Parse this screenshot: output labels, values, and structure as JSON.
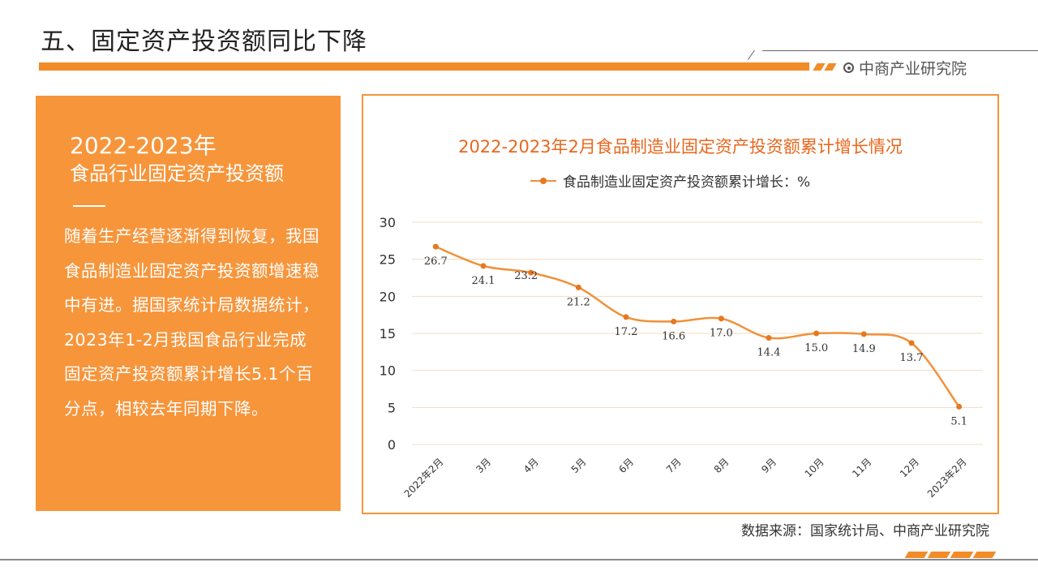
{
  "header": {
    "title": "五、固定资产投资额同比下降",
    "brand": "中商产业研究院",
    "brand_icon": "target-icon",
    "accent": "#f28c28"
  },
  "panel": {
    "year": "2022-2023年",
    "subtitle": "食品行业固定资产投资额",
    "body": "随着生产经营逐渐得到恢复，我国食品制造业固定资产投资额增速稳中有进。据国家统计局数据统计，2023年1-2月我国食品行业完成固定资产投资额累计增长5.1个百分点，相较去年同期下降。",
    "background": "#f7953b"
  },
  "chart_data": {
    "type": "line",
    "title": "2022-2023年2月食品制造业固定资产投资额累计增长情况",
    "categories": [
      "2022年2月",
      "3月",
      "4月",
      "5月",
      "6月",
      "7月",
      "8月",
      "9月",
      "10月",
      "11月",
      "12月",
      "2023年2月"
    ],
    "series": [
      {
        "name": "食品制造业固定资产投资额累计增长：%",
        "values": [
          26.7,
          24.1,
          23.2,
          21.2,
          17.2,
          16.6,
          17.0,
          14.4,
          15.0,
          14.9,
          13.7,
          5.1
        ],
        "value_labels": [
          "26.7",
          "24.1",
          "23.2",
          "21.2",
          "17.2",
          "16.6",
          "17.0",
          "14.4",
          "15.0",
          "14.9",
          "13.7",
          "5.1"
        ],
        "color": "#f0913a",
        "marker_color": "#e6781e",
        "smooth": true
      }
    ],
    "y_ticks": [
      "0",
      "5",
      "10",
      "15",
      "20",
      "25",
      "30"
    ],
    "ylim": [
      0,
      30
    ],
    "grid": true,
    "legend": "top",
    "title_color": "#e8671d",
    "grid_color": "#f3dcc3"
  },
  "footer": {
    "source": "数据来源：国家统计局、中商产业研究院"
  }
}
